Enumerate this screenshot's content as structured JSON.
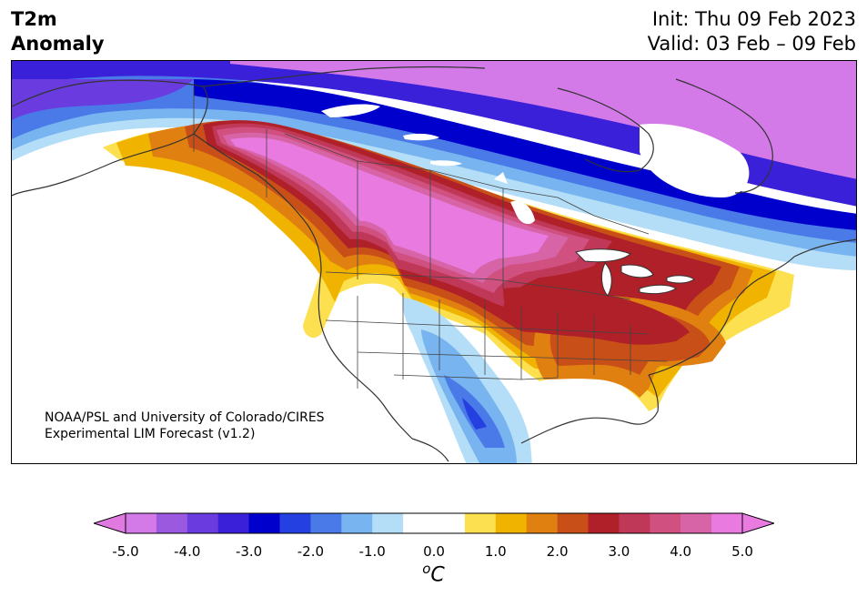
{
  "title": {
    "variable": "T2m",
    "subtitle": "Anomaly",
    "init": "Init: Thu 09 Feb 2023",
    "valid": "Valid: 03 Feb – 09 Feb"
  },
  "credit": {
    "line1": "NOAA/PSL and University of Colorado/CIRES",
    "line2": "Experimental LIM Forecast (v1.2)"
  },
  "colorbar": {
    "unit_sup": "o",
    "unit_main": "C",
    "tick_labels": [
      "-5.0",
      "-4.0",
      "-3.0",
      "-2.0",
      "-1.0",
      "0.0",
      "1.0",
      "2.0",
      "3.0",
      "4.0",
      "5.0"
    ],
    "min_color": "#e07ae0",
    "max_color": "#e87ae0",
    "colors": [
      "#d47ae8",
      "#9b59e0",
      "#6a3ce0",
      "#3a20d8",
      "#0000cc",
      "#2440e0",
      "#4a7ae8",
      "#78b4f0",
      "#b4def8",
      "#ffffff",
      "#ffffff",
      "#fce050",
      "#f0b400",
      "#e08010",
      "#c85018",
      "#b02028",
      "#c03858",
      "#d05080",
      "#d864a8",
      "#e87ae0"
    ]
  }
}
